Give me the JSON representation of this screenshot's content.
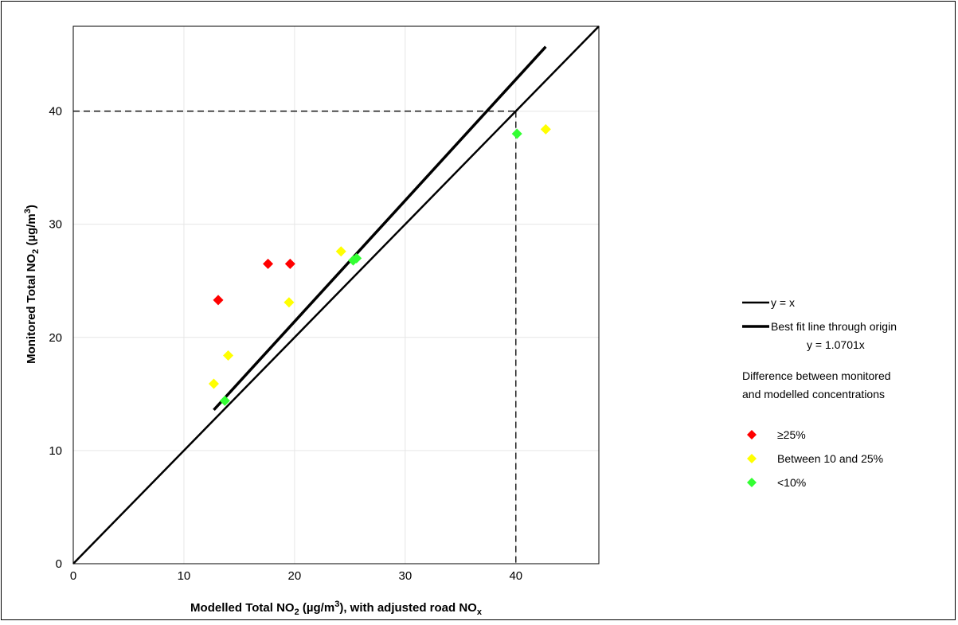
{
  "chart_data": {
    "type": "scatter",
    "xlabel": {
      "prefix": "Modelled Total NO",
      "sub1": "2",
      "mid": " (µg/m",
      "sup": "3",
      "mid2": "), with adjusted road NO",
      "sub2": "x"
    },
    "ylabel": {
      "prefix": "Monitored Total NO",
      "sub1": "2",
      "mid": " (µg/m",
      "sup": "3",
      "end": ")"
    },
    "xlim": [
      0,
      47.5
    ],
    "ylim": [
      0,
      47.5
    ],
    "xticks": [
      0,
      10,
      20,
      30,
      40
    ],
    "yticks": [
      0,
      10,
      20,
      30,
      40
    ],
    "grid": true,
    "threshold": 40,
    "lines": [
      {
        "name": "y = x",
        "slope": 1.0,
        "x_range": [
          0,
          47.5
        ],
        "width": 2.5
      },
      {
        "name": "Best fit line through origin",
        "equation": "y = 1.0701x",
        "slope": 1.0701,
        "x_range": [
          12.7,
          42.7
        ],
        "width": 3.5
      }
    ],
    "series": [
      {
        "name": "≥25%",
        "color": "#ff0000",
        "points": [
          [
            13.1,
            23.3
          ],
          [
            17.6,
            26.5
          ],
          [
            19.6,
            26.5
          ]
        ]
      },
      {
        "name": "Between 10 and 25%",
        "color": "#ffff00",
        "points": [
          [
            12.7,
            15.9
          ],
          [
            14.0,
            18.4
          ],
          [
            19.5,
            23.1
          ],
          [
            24.2,
            27.6
          ],
          [
            42.7,
            38.4
          ]
        ]
      },
      {
        "name": "<10%",
        "color": "#33ff33",
        "points": [
          [
            13.7,
            14.4
          ],
          [
            25.3,
            26.8
          ],
          [
            25.6,
            27.0
          ],
          [
            40.1,
            38.0
          ]
        ]
      }
    ],
    "legend": {
      "placement": "right",
      "line_items": [
        {
          "label": "y = x",
          "sub": ""
        },
        {
          "label": "Best fit line through origin",
          "sub": "y = 1.0701x"
        }
      ],
      "heading_line1": "Difference between monitored",
      "heading_line2": "and modelled concentrations"
    }
  }
}
